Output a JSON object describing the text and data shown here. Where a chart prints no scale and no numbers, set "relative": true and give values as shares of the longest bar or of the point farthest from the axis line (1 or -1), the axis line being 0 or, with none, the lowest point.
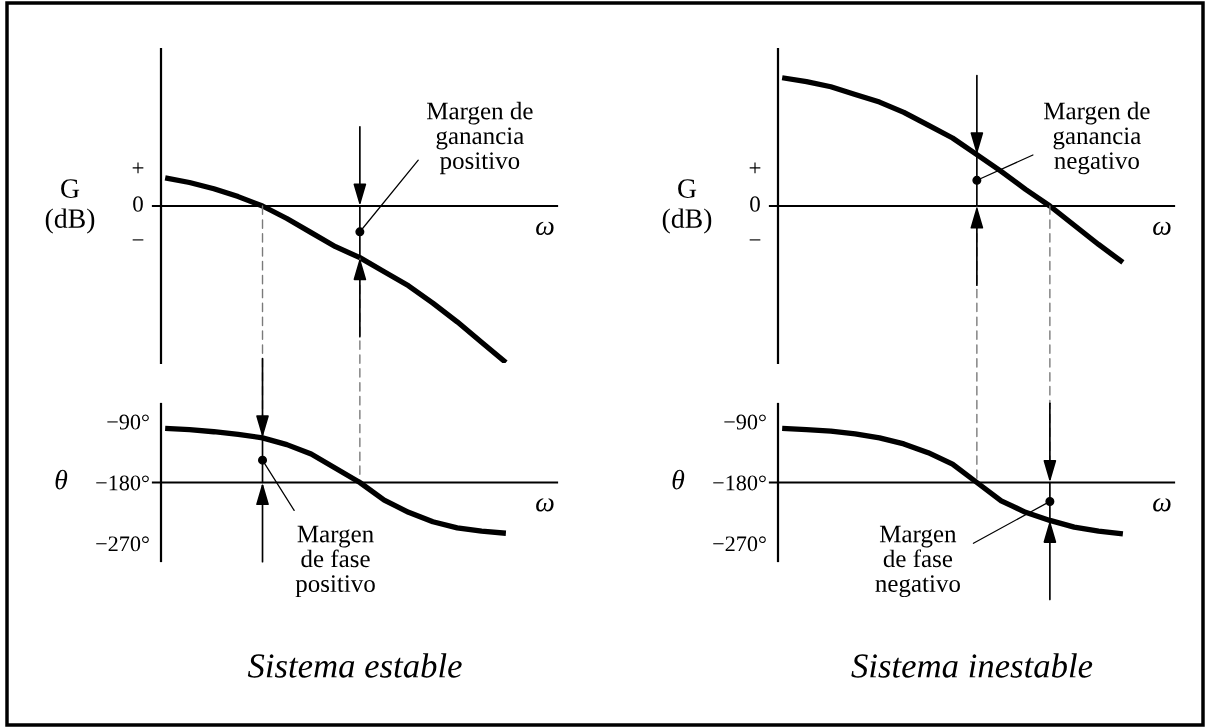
{
  "chart_data": [
    {
      "type": "line",
      "relative": true,
      "categories": [
        null,
        null,
        null,
        null,
        null,
        null,
        null,
        null,
        null,
        null,
        null,
        null,
        null,
        null,
        null
      ],
      "values": [
        0.18,
        0.15,
        0.11,
        0.06,
        0,
        -0.08,
        -0.17,
        -0.26,
        -0.33,
        -0.42,
        -0.51,
        -0.62,
        -0.74,
        -0.87,
        -1
      ],
      "color": "#000000",
      "ylabel": "G\n(dB)",
      "xlabel": "ω",
      "ref_lines": [
        {
          "axis": "y",
          "value": 0,
          "color": "#000000"
        }
      ],
      "annotations": [
        "+",
        "0",
        "−",
        "Margen de\nganancia\npositivo"
      ]
    },
    {
      "type": "line",
      "relative": true,
      "categories": [
        null,
        null,
        null,
        null,
        null,
        null,
        null,
        null,
        null,
        null,
        null,
        null,
        null,
        null,
        null
      ],
      "values": [
        1,
        0.97,
        0.93,
        0.87,
        0.81,
        0.73,
        0.63,
        0.53,
        0.4,
        0.27,
        0.13,
        0,
        -0.15,
        -0.3,
        -0.44
      ],
      "color": "#000000",
      "ylabel": "G\n(dB)",
      "xlabel": "ω",
      "ref_lines": [
        {
          "axis": "y",
          "value": 0,
          "color": "#000000"
        }
      ],
      "annotations": [
        "+",
        "0",
        "−",
        "Margen de\nganancia\nnegativo"
      ]
    },
    {
      "type": "line",
      "categories": [
        null,
        null,
        null,
        null,
        null,
        null,
        null,
        null,
        null,
        null,
        null,
        null,
        null,
        null,
        null
      ],
      "values": [
        -100,
        -102,
        -105,
        -109,
        -114,
        -124,
        -138,
        -159,
        -180,
        -206,
        -224,
        -238,
        -247,
        -252,
        -255
      ],
      "color": "#000000",
      "ylim": [
        -296,
        -64
      ],
      "yticks": [
        {
          "value": -90,
          "label": "−90°"
        },
        {
          "value": -180,
          "label": "−180°"
        },
        {
          "value": -270,
          "label": "−270°"
        }
      ],
      "tick_labels": "y",
      "title": "Sistema estable",
      "ylabel": "θ",
      "xlabel": "ω",
      "ref_lines": [
        {
          "axis": "y",
          "value": -180,
          "color": "#000000"
        }
      ],
      "annotations": [
        "Margen\nde fase\npositivo"
      ]
    },
    {
      "type": "line",
      "categories": [
        null,
        null,
        null,
        null,
        null,
        null,
        null,
        null,
        null,
        null,
        null,
        null,
        null,
        null,
        null
      ],
      "values": [
        -100,
        -102,
        -104,
        -108,
        -114,
        -123,
        -136,
        -153,
        -180,
        -207,
        -224,
        -236,
        -246,
        -252,
        -256
      ],
      "color": "#000000",
      "ylim": [
        -296,
        -64
      ],
      "yticks": [
        {
          "value": -90,
          "label": "−90°"
        },
        {
          "value": -180,
          "label": "−180°"
        },
        {
          "value": -270,
          "label": "−270°"
        }
      ],
      "tick_labels": "y",
      "title": "Sistema inestable",
      "ylabel": "θ",
      "xlabel": "ω",
      "ref_lines": [
        {
          "axis": "y",
          "value": -180,
          "color": "#000000"
        }
      ],
      "annotations": [
        "Margen\nde fase\nnegativo"
      ]
    }
  ]
}
